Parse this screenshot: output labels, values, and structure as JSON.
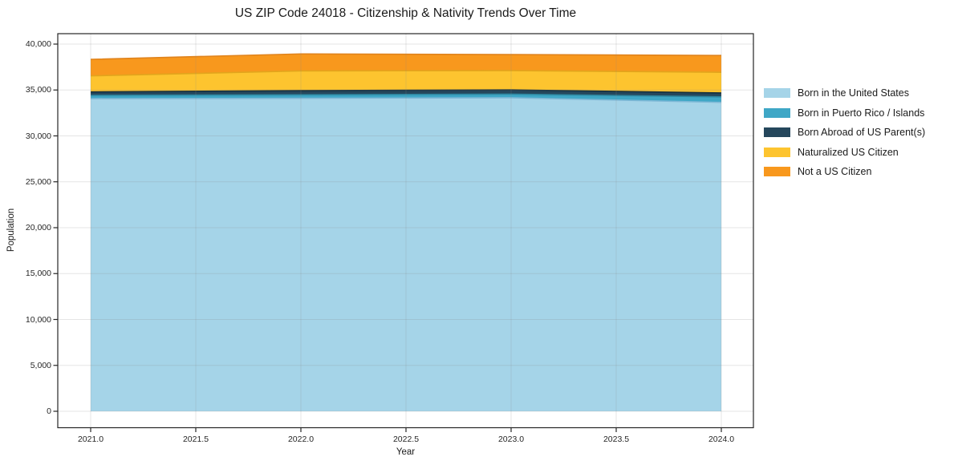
{
  "chart_data": {
    "type": "area",
    "stacked": true,
    "title": "US ZIP Code 24018 - Citizenship & Nativity Trends Over Time",
    "xlabel": "Year",
    "ylabel": "Population",
    "x": [
      2021,
      2022,
      2023,
      2024
    ],
    "series": [
      {
        "name": "Born in the United States",
        "color": "#A5D4E8",
        "edge_color": "#7EB8D6",
        "values": [
          34060,
          34100,
          34150,
          33650
        ]
      },
      {
        "name": "Born in Puerto Rico / Islands",
        "color": "#3FA7C6",
        "edge_color": "#2E87A0",
        "values": [
          350,
          380,
          400,
          600
        ]
      },
      {
        "name": "Born Abroad of US Parent(s)",
        "color": "#25475C",
        "edge_color": "#16303F",
        "values": [
          380,
          450,
          460,
          430
        ]
      },
      {
        "name": "Naturalized US Citizen",
        "color": "#FDC42F",
        "edge_color": "#E2A51C",
        "values": [
          1750,
          2150,
          2100,
          2250
        ]
      },
      {
        "name": "Not a US Citizen",
        "color": "#F8981D",
        "edge_color": "#E0831C",
        "values": [
          1800,
          1850,
          1750,
          1830
        ]
      }
    ],
    "xticks": [
      2021.0,
      2021.5,
      2022.0,
      2022.5,
      2023.0,
      2023.5,
      2024.0
    ],
    "xtick_labels": [
      "2021.0",
      "2021.5",
      "2022.0",
      "2022.5",
      "2023.0",
      "2023.5",
      "2024.0"
    ],
    "yticks": [
      0,
      5000,
      10000,
      15000,
      20000,
      25000,
      30000,
      35000,
      40000
    ],
    "ytick_labels": [
      "0",
      "5,000",
      "10,000",
      "15,000",
      "20,000",
      "25,000",
      "30,000",
      "35,000",
      "40,000"
    ],
    "xlim": [
      2020.84,
      2024.15
    ],
    "ylim": [
      -1790,
      41140
    ],
    "grid": true,
    "legend_position": "center right outside",
    "colors": {
      "text": "#1a1a1a",
      "tick_text": "#262626",
      "spine": "#262626",
      "grid": "#888888",
      "background": "#ffffff"
    }
  }
}
